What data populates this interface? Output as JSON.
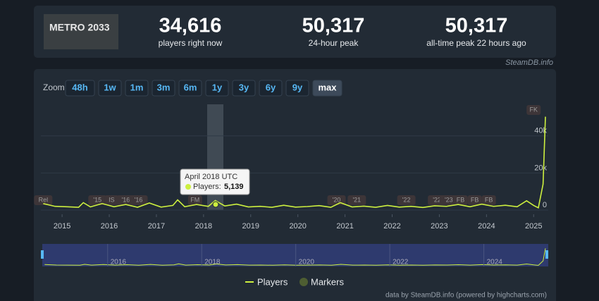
{
  "header": {
    "logo": "METRO 2033",
    "stats": [
      {
        "value": "34,616",
        "label": "players right now"
      },
      {
        "value": "50,317",
        "label": "24-hour peak"
      },
      {
        "value": "50,317",
        "label": "all-time peak 22 hours ago"
      }
    ],
    "source": "SteamDB.info"
  },
  "zoom": {
    "label": "Zoom",
    "buttons": [
      "48h",
      "1w",
      "1m",
      "3m",
      "6m",
      "1y",
      "3y",
      "6y",
      "9y",
      "max"
    ]
  },
  "tooltip": {
    "title": "April 2018 UTC",
    "label": "Players:",
    "value_label": "5,139"
  },
  "chart_data": {
    "type": "line",
    "x": [
      2014.6,
      2014.85,
      2015.1,
      2015.35,
      2015.45,
      2015.6,
      2015.85,
      2016.1,
      2016.35,
      2016.6,
      2016.85,
      2017.1,
      2017.35,
      2017.45,
      2017.6,
      2017.85,
      2018.1,
      2018.25,
      2018.45,
      2018.7,
      2018.95,
      2019.2,
      2019.45,
      2019.7,
      2019.95,
      2020.2,
      2020.45,
      2020.7,
      2020.9,
      2021.15,
      2021.4,
      2021.65,
      2021.9,
      2022.15,
      2022.4,
      2022.65,
      2022.9,
      2023.15,
      2023.4,
      2023.65,
      2023.9,
      2024.15,
      2024.4,
      2024.65,
      2024.85,
      2025.0,
      2025.1,
      2025.2,
      2025.25
    ],
    "series": [
      {
        "name": "Players",
        "color": "#cdf03f",
        "values": [
          3500,
          2000,
          1800,
          1500,
          4000,
          1700,
          3500,
          1800,
          3000,
          1500,
          3800,
          1600,
          2500,
          5500,
          1800,
          3000,
          2000,
          5139,
          2200,
          3200,
          1700,
          2000,
          1500,
          2600,
          1600,
          1900,
          2400,
          1500,
          4000,
          1700,
          2100,
          1500,
          2500,
          1600,
          2000,
          1400,
          2300,
          2000,
          3000,
          1800,
          3200,
          2000,
          2600,
          1800,
          5000,
          2500,
          1200,
          14000,
          50317
        ]
      }
    ],
    "markers_name": "Markers",
    "markers_color": "#4e5e32",
    "markers": [
      {
        "label": "Rel",
        "x": 2014.6
      },
      {
        "label": "'15",
        "x": 2015.75
      },
      {
        "label": "IS",
        "x": 2016.05
      },
      {
        "label": "'16",
        "x": 2016.35
      },
      {
        "label": "'16",
        "x": 2016.62
      },
      {
        "label": "FM",
        "x": 2017.82
      },
      {
        "label": "'20",
        "x": 2020.82
      },
      {
        "label": "'21",
        "x": 2021.25
      },
      {
        "label": "'22",
        "x": 2022.3
      },
      {
        "label": "'22",
        "x": 2022.95
      },
      {
        "label": "'23",
        "x": 2023.2
      },
      {
        "label": "FB",
        "x": 2023.45
      },
      {
        "label": "FB",
        "x": 2023.75
      },
      {
        "label": "FB",
        "x": 2024.05
      },
      {
        "label": "FK",
        "x": 2025.0
      }
    ],
    "xlim": [
      2014.55,
      2025.31
    ],
    "xticks": [
      2015,
      2016,
      2017,
      2018,
      2019,
      2020,
      2021,
      2022,
      2023,
      2024,
      2025
    ],
    "ylim": [
      0,
      57000
    ],
    "yticks": [
      0,
      {
        "value": 20000,
        "label": "20k"
      },
      {
        "value": 40000,
        "label": "40k"
      }
    ],
    "grid": true,
    "navigator_xticks": [
      2016,
      2018,
      2020,
      2022,
      2024
    ],
    "credits": "data by SteamDB.info (powered by highcharts.com)"
  }
}
